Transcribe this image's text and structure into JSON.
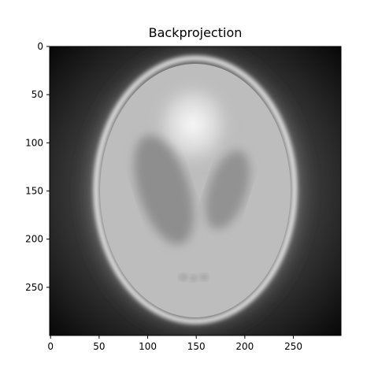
{
  "figure": {
    "title": "Backprojection",
    "x_ticks": [
      "0",
      "50",
      "100",
      "150",
      "200",
      "250"
    ],
    "y_ticks": [
      "0",
      "50",
      "100",
      "150",
      "200",
      "250"
    ],
    "x_tick_values": [
      0,
      50,
      100,
      150,
      200,
      250
    ],
    "y_tick_values": [
      0,
      50,
      100,
      150,
      200,
      250
    ],
    "image_extent": [
      0,
      300
    ],
    "colormap": "gray"
  }
}
